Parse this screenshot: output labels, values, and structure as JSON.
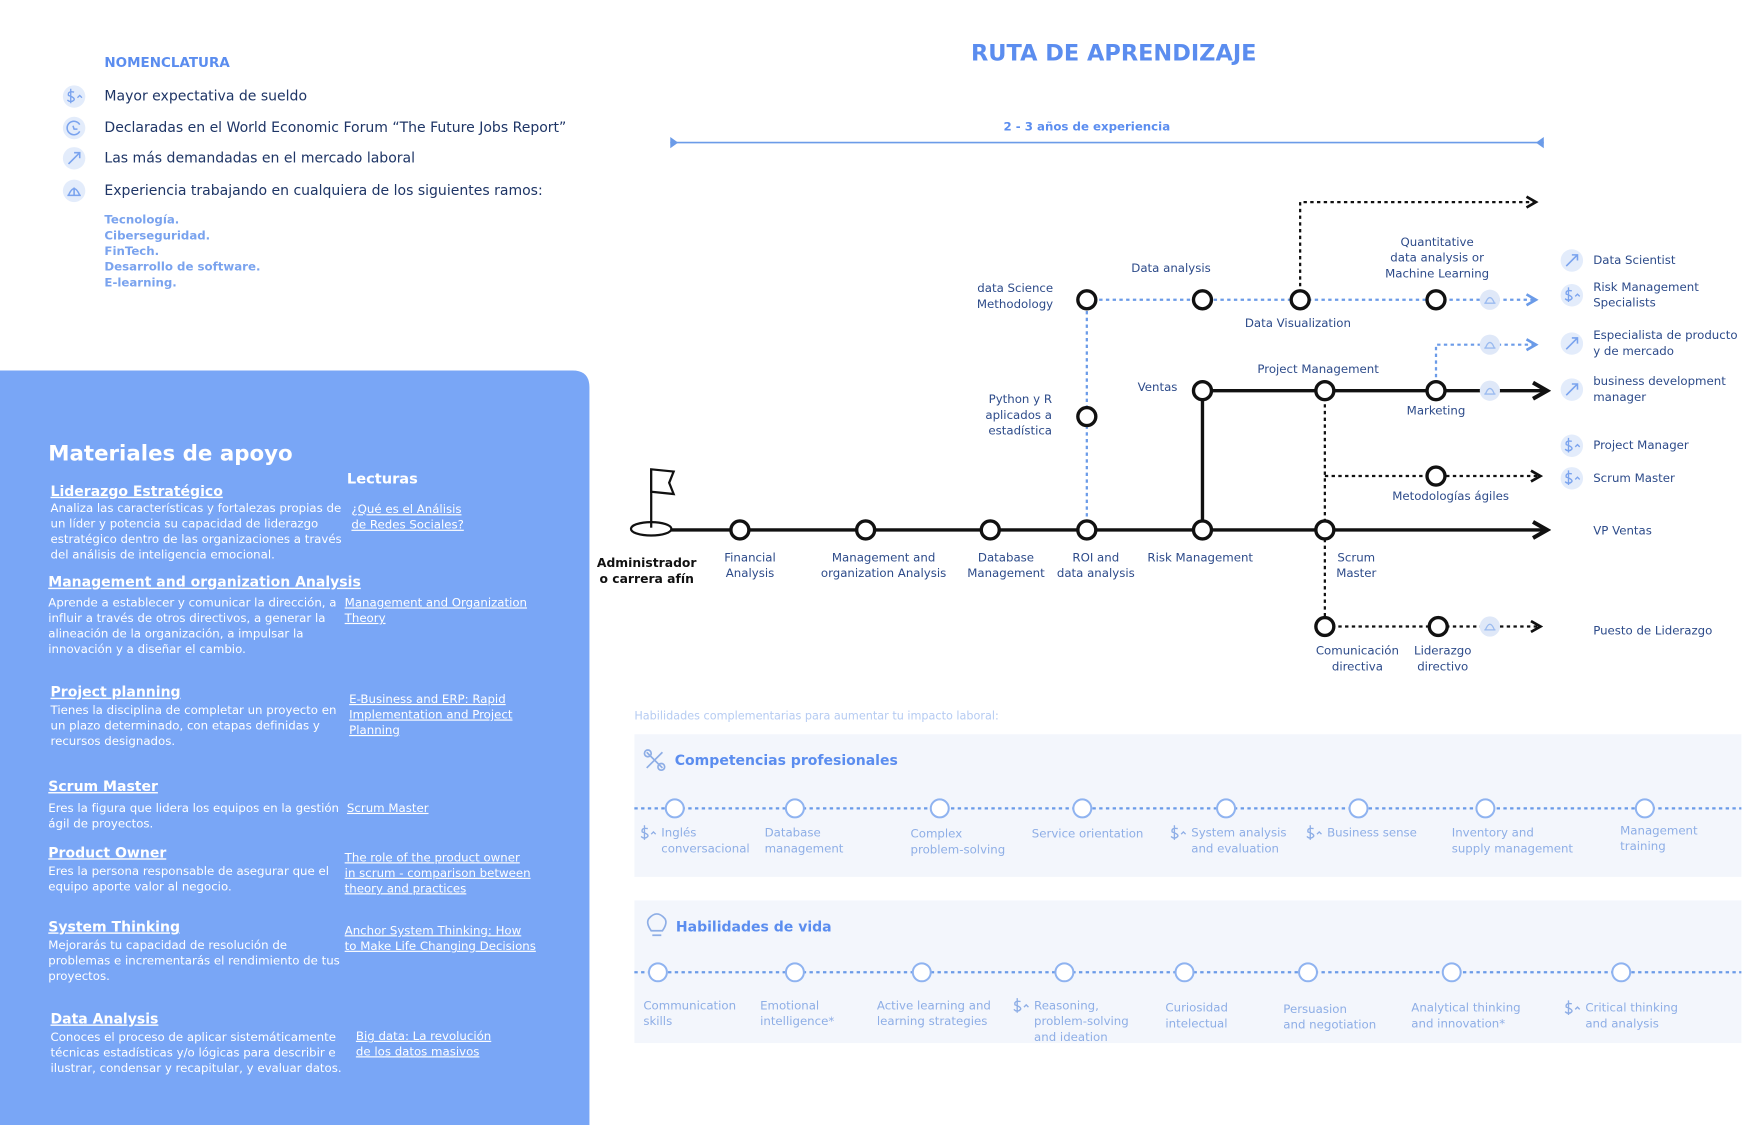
{
  "legend": {
    "title": "NOMENCLATURA",
    "items": [
      "Mayor expectativa de sueldo",
      "Declaradas en el World Economic Forum “The Future Jobs Report”",
      "Las más demandadas en el mercado laboral",
      "Experiencia trabajando  en cualquiera de los siguientes ramos:"
    ],
    "sectors": [
      "Tecnología.",
      "Ciberseguridad.",
      "FinTech.",
      "Desarrollo de software.",
      "E-learning."
    ]
  },
  "title": "RUTA DE APRENDIZAJE",
  "experience": "2 - 3 años de experiencia",
  "materials": {
    "title": "Materiales de apoyo",
    "readings_title": "Lecturas",
    "items": [
      {
        "title": "Liderazgo Estratégico",
        "description": [
          "Analiza las características y fortalezas propias de",
          "un líder y potencia su capacidad de liderazgo",
          "estratégico dentro de las organizaciones a través",
          "del análisis de inteligencia emocional."
        ],
        "reading": [
          "¿Qué es el Análisis",
          "de Redes Sociales?"
        ]
      },
      {
        "title": "Management and organization Analysis",
        "description": [
          "Aprende a establecer y comunicar la dirección, a",
          "influir a través de otros directivos, a generar la",
          "alineación de la organización, a impulsar la",
          "innovación y a diseñar el cambio."
        ],
        "reading": [
          "Management and Organization",
          "Theory"
        ]
      },
      {
        "title": "Project planning",
        "description": [
          "Tienes la disciplina de completar un proyecto en",
          "un plazo determinado, con etapas definidas y",
          "recursos designados."
        ],
        "reading": [
          "E-Business and ERP: Rapid",
          "Implementation and Project",
          "Planning"
        ]
      },
      {
        "title": "Scrum Master",
        "description": [
          "Eres la figura que lidera los equipos en la gestión",
          "ágil de proyectos."
        ],
        "reading": [
          "Scrum Master"
        ]
      },
      {
        "title": "Product Owner",
        "description": [
          "Eres la persona responsable de asegurar que el",
          "equipo aporte valor al negocio."
        ],
        "reading": [
          "The role of the product owner",
          "in scrum  - comparison between",
          "theory and practices"
        ]
      },
      {
        "title": "System Thinking",
        "description": [
          "Mejorarás tu capacidad de resolución de",
          "problemas e incrementarás el rendimiento de tus",
          "proyectos."
        ],
        "reading": [
          "Anchor System Thinking: How",
          "to Make Life Changing Decisions"
        ]
      },
      {
        "title": "Data Analysis",
        "description": [
          "Conoces el proceso de aplicar sistemáticamente",
          "técnicas estadísticas y/o lógicas para describir e",
          "ilustrar, condensar y recapitular, y evaluar datos."
        ],
        "reading": [
          "Big data: La revolución",
          "de los datos masivos"
        ]
      }
    ]
  },
  "path": {
    "start": [
      "Administrador",
      "o carrera afín"
    ],
    "nodes": [
      [
        "Financial",
        "Analysis"
      ],
      [
        "Management and",
        "organization Analysis"
      ],
      [
        "Database",
        "Management"
      ],
      [
        "ROI and",
        "data analysis"
      ],
      [
        "Risk Management"
      ],
      [
        "Scrum",
        "Master"
      ],
      [
        "Python y R",
        "aplicados a",
        "estadística"
      ],
      [
        "data Science",
        "Methodology"
      ],
      [
        "Data analysis"
      ],
      [
        "Data Visualization"
      ],
      [
        "Quantitative",
        "data analysis or",
        "Machine Learning"
      ],
      [
        "Ventas"
      ],
      [
        "Project Management"
      ],
      [
        "Marketing"
      ],
      [
        "Metodologías ágiles"
      ],
      [
        "Comunicación",
        "directiva"
      ],
      [
        "Liderazgo",
        "directivo"
      ]
    ],
    "outcomes": [
      {
        "label": [
          "Data Scientist"
        ],
        "icon": "demand"
      },
      {
        "label": [
          "Risk Management",
          "Specialists"
        ],
        "icon": "salary"
      },
      {
        "label": [
          "Especialista de producto",
          "y de mercado"
        ],
        "icon": "demand"
      },
      {
        "label": [
          "business development",
          "manager"
        ],
        "icon": "demand"
      },
      {
        "label": [
          "Project Manager"
        ],
        "icon": "salary"
      },
      {
        "label": [
          "Scrum Master"
        ],
        "icon": "salary"
      },
      {
        "label": [
          "VP Ventas"
        ],
        "icon": "none"
      },
      {
        "label": [
          "Puesto de Liderazgo"
        ],
        "icon": "none"
      }
    ]
  },
  "skills": {
    "intro": "Habilidades complementarias para aumentar tu impacto laboral:",
    "groups": [
      {
        "title": "Competencias profesionales",
        "items": [
          {
            "label": [
              "Inglés",
              "conversacional"
            ],
            "salary": true
          },
          {
            "label": [
              "Database",
              "management"
            ],
            "salary": false
          },
          {
            "label": [
              "Complex",
              "problem-solving"
            ],
            "salary": false
          },
          {
            "label": [
              "Service orientation"
            ],
            "salary": false
          },
          {
            "label": [
              "System analysis",
              "and evaluation"
            ],
            "salary": true
          },
          {
            "label": [
              "Business sense"
            ],
            "salary": true
          },
          {
            "label": [
              "Inventory and",
              "supply management"
            ],
            "salary": false
          },
          {
            "label": [
              "Management",
              "training"
            ],
            "salary": false
          }
        ]
      },
      {
        "title": "Habilidades de vida",
        "items": [
          {
            "label": [
              "Communication",
              "skills"
            ],
            "salary": false
          },
          {
            "label": [
              "Emotional",
              "intelligence*"
            ],
            "salary": false
          },
          {
            "label": [
              "Active learning and",
              "learning strategies"
            ],
            "salary": false
          },
          {
            "label": [
              "Reasoning,",
              "problem-solving",
              "and ideation"
            ],
            "salary": true
          },
          {
            "label": [
              "Curiosidad",
              "intelectual"
            ],
            "salary": false
          },
          {
            "label": [
              "Persuasion",
              "and negotiation"
            ],
            "salary": false
          },
          {
            "label": [
              "Analytical thinking",
              "and innovation*"
            ],
            "salary": false
          },
          {
            "label": [
              "Critical thinking",
              "and analysis"
            ],
            "salary": true
          }
        ]
      }
    ]
  }
}
